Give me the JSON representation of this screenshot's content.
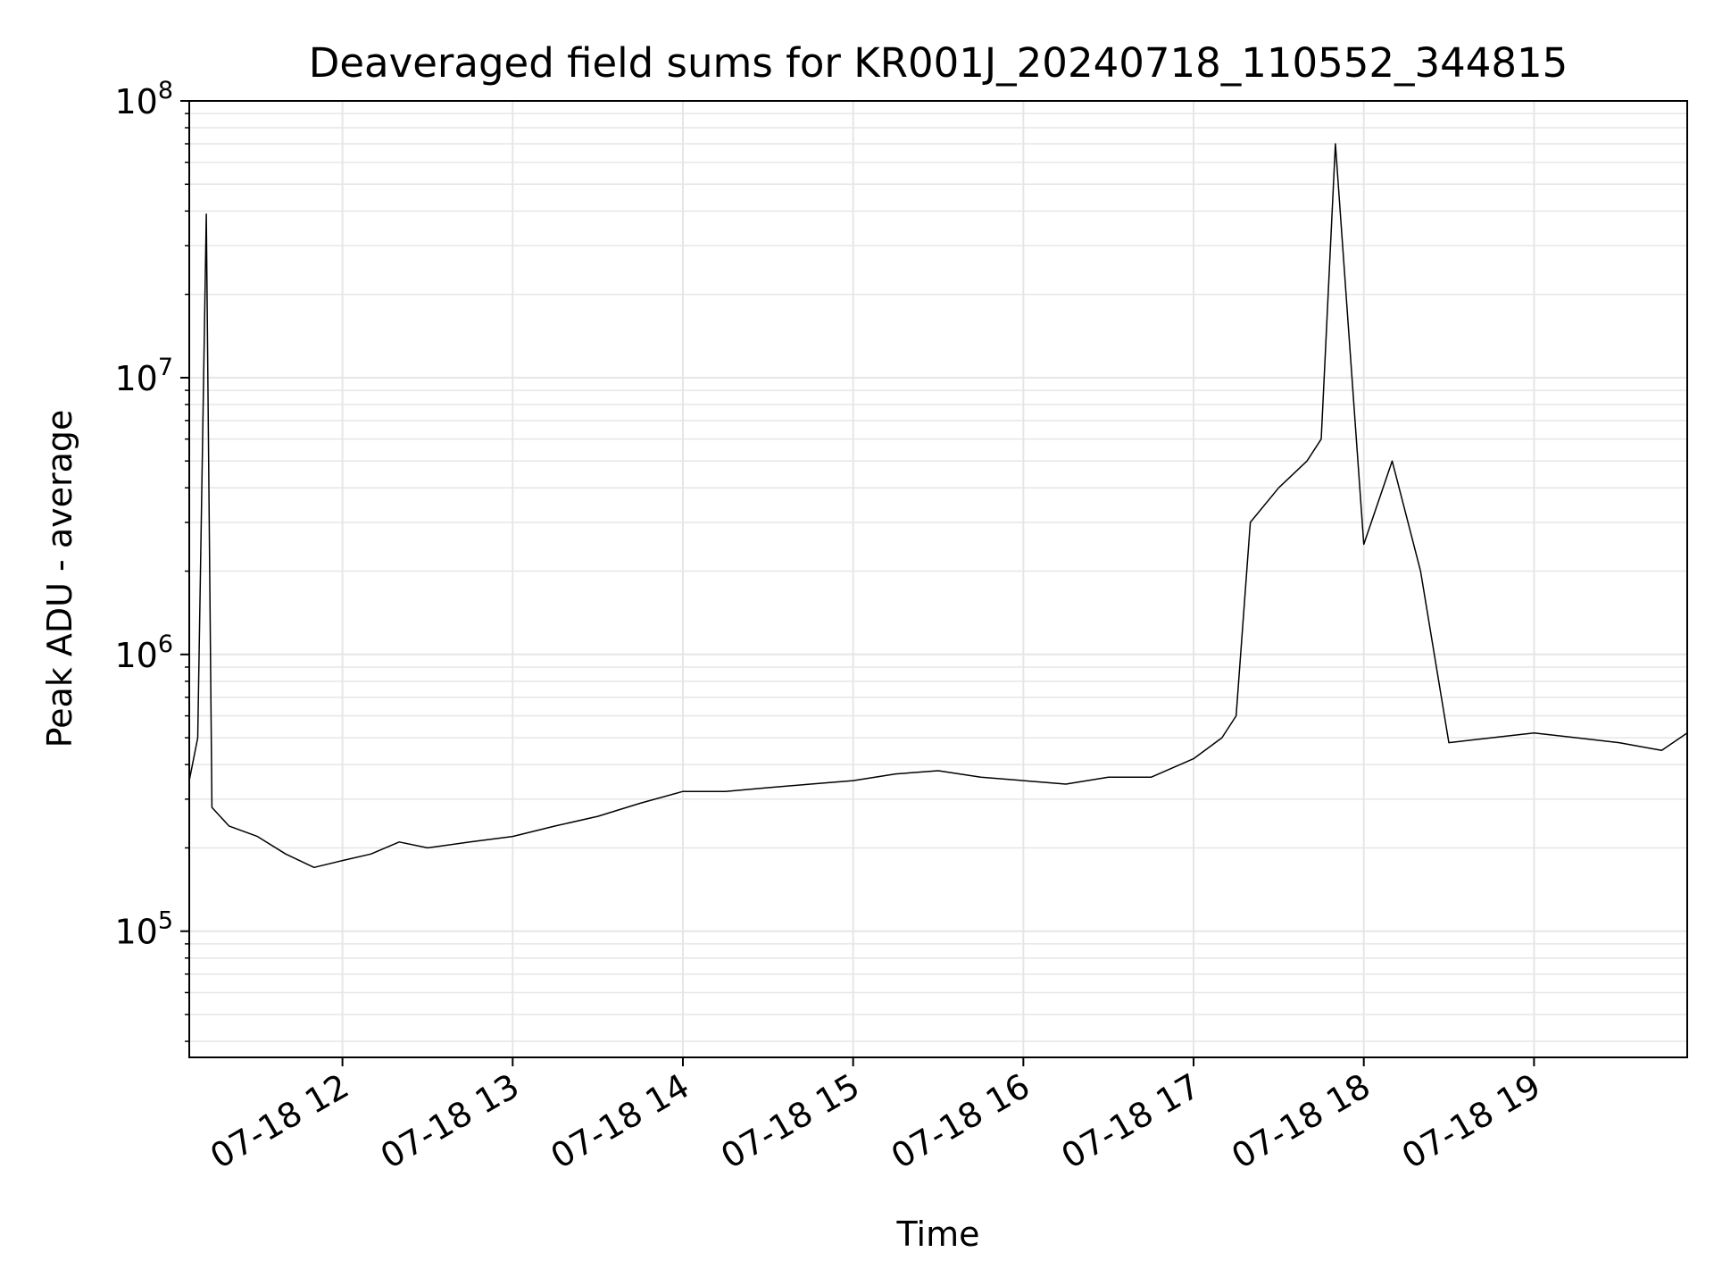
{
  "chart_data": {
    "type": "line",
    "title": "Deaveraged field sums for KR001J_20240718_110552_344815",
    "xlabel": "Time",
    "ylabel": "Peak ADU - average",
    "yscale": "log",
    "ylim": [
      35000,
      100000000
    ],
    "xlim": [
      "2024-07-18 11:06",
      "2024-07-18 19:54"
    ],
    "grid": true,
    "line_color": "#000000",
    "grid_color": "#e6e6e6",
    "x_ticks": [
      {
        "value": "2024-07-18 12:00",
        "label": "07-18 12"
      },
      {
        "value": "2024-07-18 13:00",
        "label": "07-18 13"
      },
      {
        "value": "2024-07-18 14:00",
        "label": "07-18 14"
      },
      {
        "value": "2024-07-18 15:00",
        "label": "07-18 15"
      },
      {
        "value": "2024-07-18 16:00",
        "label": "07-18 16"
      },
      {
        "value": "2024-07-18 17:00",
        "label": "07-18 17"
      },
      {
        "value": "2024-07-18 18:00",
        "label": "07-18 18"
      },
      {
        "value": "2024-07-18 19:00",
        "label": "07-18 19"
      }
    ],
    "y_ticks": [
      {
        "value": 100000,
        "base": "10",
        "exp": "5"
      },
      {
        "value": 1000000,
        "base": "10",
        "exp": "6"
      },
      {
        "value": 10000000,
        "base": "10",
        "exp": "7"
      },
      {
        "value": 100000000,
        "base": "10",
        "exp": "8"
      }
    ],
    "series": [
      {
        "x": [
          "2024-07-18 11:06",
          "2024-07-18 11:09",
          "2024-07-18 11:12",
          "2024-07-18 11:14",
          "2024-07-18 11:20",
          "2024-07-18 11:30",
          "2024-07-18 11:40",
          "2024-07-18 11:50",
          "2024-07-18 12:00",
          "2024-07-18 12:10",
          "2024-07-18 12:20",
          "2024-07-18 12:30",
          "2024-07-18 12:45",
          "2024-07-18 13:00",
          "2024-07-18 13:15",
          "2024-07-18 13:30",
          "2024-07-18 13:45",
          "2024-07-18 14:00",
          "2024-07-18 14:15",
          "2024-07-18 14:30",
          "2024-07-18 14:45",
          "2024-07-18 15:00",
          "2024-07-18 15:15",
          "2024-07-18 15:30",
          "2024-07-18 15:45",
          "2024-07-18 16:00",
          "2024-07-18 16:15",
          "2024-07-18 16:30",
          "2024-07-18 16:45",
          "2024-07-18 17:00",
          "2024-07-18 17:10",
          "2024-07-18 17:15",
          "2024-07-18 17:20",
          "2024-07-18 17:30",
          "2024-07-18 17:40",
          "2024-07-18 17:45",
          "2024-07-18 17:50",
          "2024-07-18 18:00",
          "2024-07-18 18:10",
          "2024-07-18 18:20",
          "2024-07-18 18:30",
          "2024-07-18 18:45",
          "2024-07-18 19:00",
          "2024-07-18 19:15",
          "2024-07-18 19:30",
          "2024-07-18 19:45",
          "2024-07-18 19:54"
        ],
        "y": [
          350000,
          500000,
          39000000,
          280000,
          240000,
          220000,
          190000,
          170000,
          180000,
          190000,
          210000,
          200000,
          210000,
          220000,
          240000,
          260000,
          290000,
          320000,
          320000,
          330000,
          340000,
          350000,
          370000,
          380000,
          360000,
          350000,
          340000,
          360000,
          360000,
          420000,
          500000,
          600000,
          3000000,
          4000000,
          5000000,
          6000000,
          70000000,
          2500000,
          5000000,
          2000000,
          480000,
          500000,
          520000,
          500000,
          480000,
          450000,
          520000
        ]
      }
    ]
  }
}
